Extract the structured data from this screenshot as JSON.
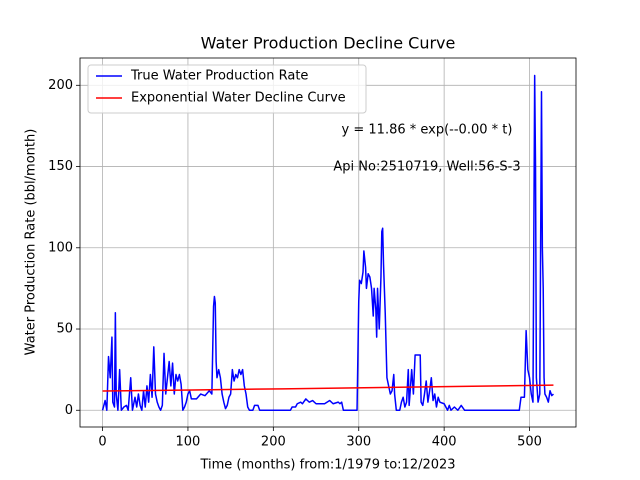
{
  "chart_data": {
    "type": "line",
    "title": "Water Production Decline Curve",
    "xlabel": "Time (months) from:1/1979 to:12/2023",
    "ylabel": "Water Production Rate (bbl/month)",
    "annotations": [
      "y = 11.86 * exp(--0.00 * t)",
      "Api No:2510719, Well:56-S-3"
    ],
    "xlim": [
      -26.4,
      554.4
    ],
    "ylim": [
      -10.3,
      216.8
    ],
    "xticks": [
      0,
      100,
      200,
      300,
      400,
      500
    ],
    "yticks": [
      0,
      50,
      100,
      150,
      200
    ],
    "grid": true,
    "legend": "upper left",
    "series": [
      {
        "name": "True Water Production Rate",
        "color": "#0000ff",
        "x": [
          0,
          3,
          5,
          7,
          9,
          11,
          12,
          14,
          15,
          16,
          18,
          20,
          22,
          25,
          28,
          30,
          33,
          35,
          38,
          40,
          42,
          44,
          46,
          48,
          50,
          52,
          54,
          56,
          58,
          60,
          62,
          64,
          66,
          68,
          70,
          72,
          74,
          76,
          78,
          80,
          82,
          84,
          86,
          88,
          90,
          92,
          94,
          96,
          98,
          100,
          102,
          104,
          110,
          115,
          120,
          125,
          128,
          130,
          131,
          132,
          133,
          134,
          136,
          138,
          140,
          142,
          144,
          146,
          148,
          150,
          152,
          154,
          156,
          158,
          160,
          162,
          164,
          166,
          168,
          170,
          172,
          176,
          178,
          182,
          184,
          220,
          222,
          226,
          228,
          232,
          234,
          238,
          240,
          242,
          246,
          250,
          260,
          266,
          270,
          276,
          278,
          280,
          282,
          298,
          300,
          301,
          303,
          305,
          306,
          308,
          309,
          311,
          313,
          315,
          317,
          318,
          320,
          321,
          322,
          324,
          326,
          327,
          328,
          329,
          331,
          333,
          335,
          337,
          339,
          341,
          342,
          344,
          348,
          350,
          352,
          354,
          356,
          358,
          359,
          360,
          362,
          364,
          366,
          372,
          373,
          375,
          377,
          379,
          381,
          383,
          385,
          387,
          389,
          391,
          393,
          395,
          400,
          404,
          406,
          408,
          412,
          416,
          420,
          424,
          488,
          490,
          494,
          496,
          498,
          500,
          502,
          504,
          506,
          507,
          508,
          510,
          512,
          514,
          515,
          516,
          517,
          518,
          520,
          522,
          524,
          526,
          528
        ],
        "values": [
          0,
          6,
          0,
          33,
          20,
          45,
          5,
          2,
          60,
          10,
          0,
          25,
          0,
          2,
          3,
          0,
          20,
          0,
          8,
          2,
          10,
          3,
          0,
          12,
          2,
          15,
          5,
          22,
          8,
          39,
          10,
          5,
          2,
          0,
          3,
          35,
          10,
          20,
          30,
          15,
          29,
          10,
          22,
          18,
          22,
          16,
          0,
          2,
          5,
          10,
          12,
          7,
          7,
          10,
          9,
          12,
          10,
          64,
          70,
          66,
          30,
          20,
          25,
          20,
          10,
          5,
          1,
          3,
          8,
          10,
          25,
          18,
          22,
          20,
          25,
          22,
          25,
          15,
          10,
          2,
          0,
          0,
          3,
          3,
          0,
          0,
          2,
          2,
          4,
          5,
          4,
          7,
          6,
          5,
          6,
          4,
          4,
          6,
          4,
          5,
          4,
          5,
          0,
          0,
          67,
          80,
          78,
          85,
          98,
          88,
          75,
          84,
          82,
          75,
          58,
          75,
          62,
          45,
          75,
          50,
          82,
          110,
          112,
          90,
          60,
          20,
          15,
          10,
          12,
          22,
          10,
          0,
          0,
          5,
          8,
          2,
          5,
          25,
          3,
          10,
          25,
          10,
          34,
          34,
          5,
          3,
          10,
          18,
          5,
          12,
          20,
          6,
          10,
          2,
          8,
          5,
          4,
          0,
          3,
          0,
          2,
          0,
          3,
          0,
          0,
          8,
          8,
          49,
          25,
          20,
          10,
          5,
          206,
          150,
          20,
          5,
          10,
          196,
          100,
          75,
          20,
          10,
          8,
          5,
          12,
          9,
          10
        ]
      },
      {
        "name": "Exponential Water Decline Curve",
        "color": "#ff0000",
        "x": [
          0,
          105,
          211,
          317,
          422,
          528
        ],
        "values": [
          11.86,
          12.51,
          13.2,
          13.93,
          14.7,
          15.5
        ]
      }
    ]
  }
}
